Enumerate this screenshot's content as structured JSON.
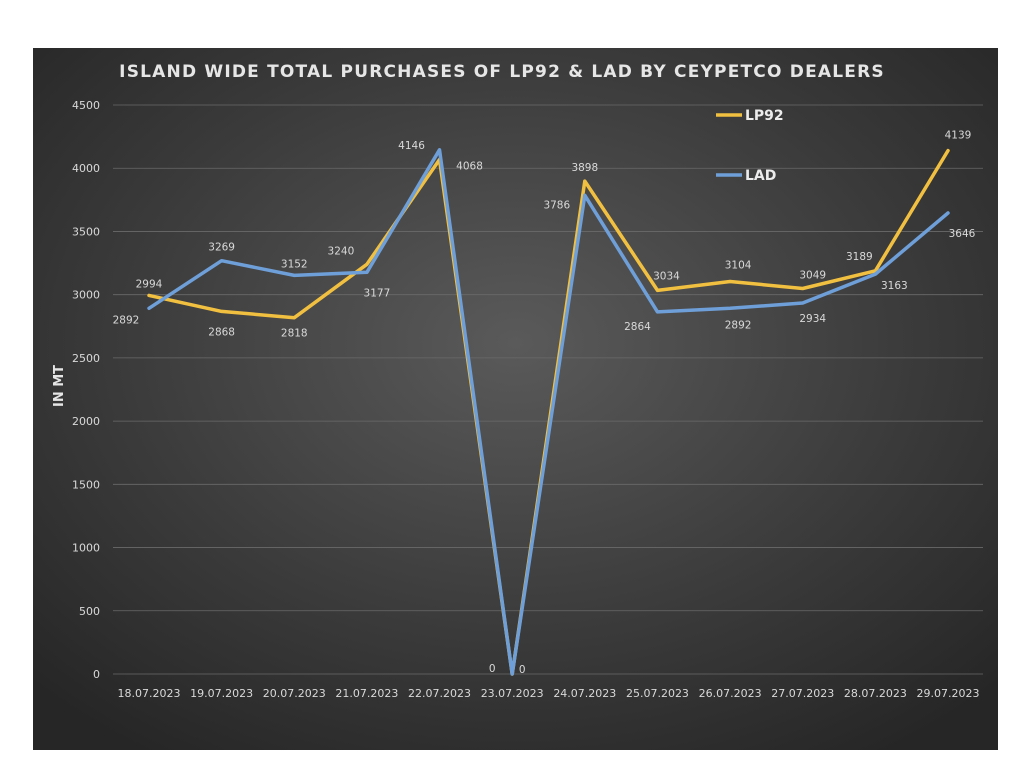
{
  "chart_data": {
    "type": "line",
    "title": "ISLAND WIDE TOTAL PURCHASES OF LP92 & LAD BY CEYPETCO DEALERS",
    "ylabel": "IN MT",
    "xlabel": "",
    "ylim": [
      0,
      4500
    ],
    "y_ticks": [
      0,
      500,
      1000,
      1500,
      2000,
      2500,
      3000,
      3500,
      4000,
      4500
    ],
    "grid": true,
    "legend_position": "top-right",
    "categories": [
      "18.07.2023",
      "19.07.2023",
      "20.07.2023",
      "21.07.2023",
      "22.07.2023",
      "23.07.2023",
      "24.07.2023",
      "25.07.2023",
      "26.07.2023",
      "27.07.2023",
      "28.07.2023",
      "29.07.2023"
    ],
    "series": [
      {
        "name": "LP92",
        "color": "#f2c041",
        "values": [
          2994,
          2868,
          2818,
          3240,
          4068,
          0,
          3898,
          3034,
          3104,
          3049,
          3189,
          4139
        ]
      },
      {
        "name": "LAD",
        "color": "#6f9fd8",
        "values": [
          2892,
          3269,
          3152,
          3177,
          4146,
          0,
          3786,
          2864,
          2892,
          2934,
          3163,
          3646
        ]
      }
    ]
  }
}
